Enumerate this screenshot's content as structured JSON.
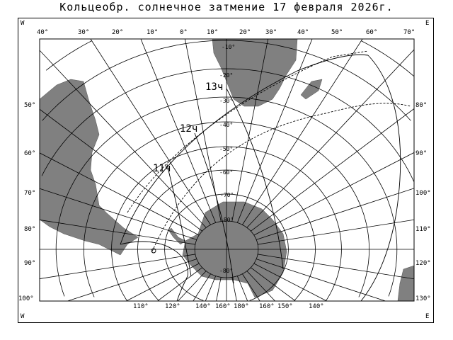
{
  "title": "Кольцеобр. солнечное затмение 17 февраля 2026г.",
  "corners": {
    "top_left": "W",
    "top_right": "E",
    "bottom_left": "W",
    "bottom_right": "E"
  },
  "top_longitudes": [
    "40°",
    "30°",
    "20°",
    "10°",
    "0°",
    "10°",
    "20°",
    "30°",
    "40°",
    "50°",
    "60°",
    "70°"
  ],
  "bottom_longitudes": [
    "110°",
    "120°",
    "140°",
    "160°",
    "180°",
    "160°",
    "150°",
    "140°"
  ],
  "left_latitudes": [
    "50°",
    "60°",
    "70°",
    "80°",
    "90°",
    "100°"
  ],
  "right_latitudes": [
    "80°",
    "90°",
    "100°",
    "110°",
    "120°",
    "130°"
  ],
  "parallel_labels": [
    "-10°",
    "-20°",
    "-30°",
    "-40°",
    "-50°",
    "-60°",
    "-70°",
    "-80°",
    "-80°"
  ],
  "time_labels": [
    "11ч",
    "12ч",
    "13ч"
  ],
  "colors": {
    "land": "#808080",
    "lines": "#000000",
    "background": "#ffffff"
  }
}
